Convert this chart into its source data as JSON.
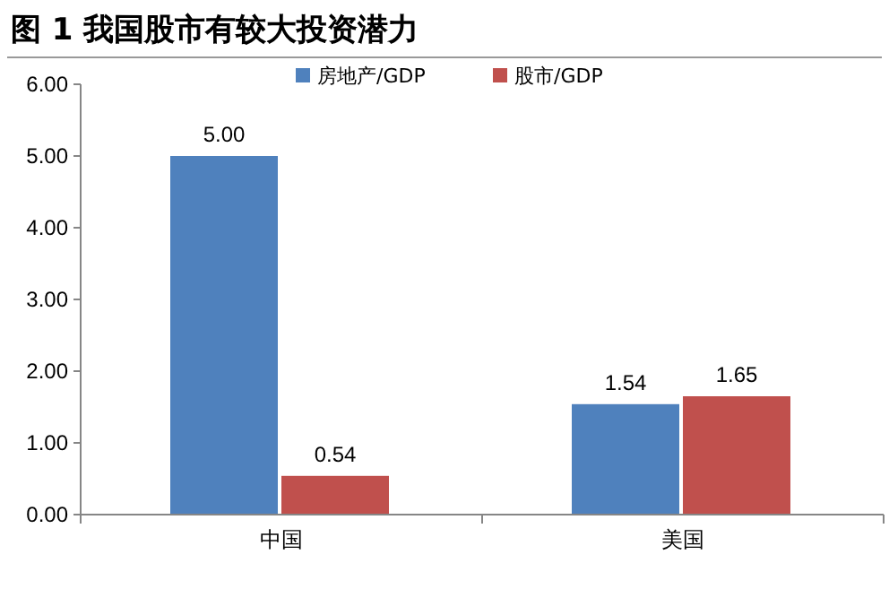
{
  "chart_data": {
    "type": "bar",
    "title": "图 1 我国股市有较大投资潜力",
    "categories": [
      "中国",
      "美国"
    ],
    "series": [
      {
        "name": "房地产/GDP",
        "color": "#4f81bd",
        "values": [
          5.0,
          1.54
        ],
        "value_labels": [
          "5.00",
          "1.54"
        ]
      },
      {
        "name": "股市/GDP",
        "color": "#c0504d",
        "values": [
          0.54,
          1.65
        ],
        "value_labels": [
          "0.54",
          "1.65"
        ]
      }
    ],
    "ylim": [
      0,
      6
    ],
    "yticks": [
      {
        "value": 0,
        "label": "0.00"
      },
      {
        "value": 1,
        "label": "1.00"
      },
      {
        "value": 2,
        "label": "2.00"
      },
      {
        "value": 3,
        "label": "3.00"
      },
      {
        "value": 4,
        "label": "4.00"
      },
      {
        "value": 5,
        "label": "5.00"
      },
      {
        "value": 6,
        "label": "6.00"
      }
    ],
    "legend": "top",
    "grid": false
  }
}
